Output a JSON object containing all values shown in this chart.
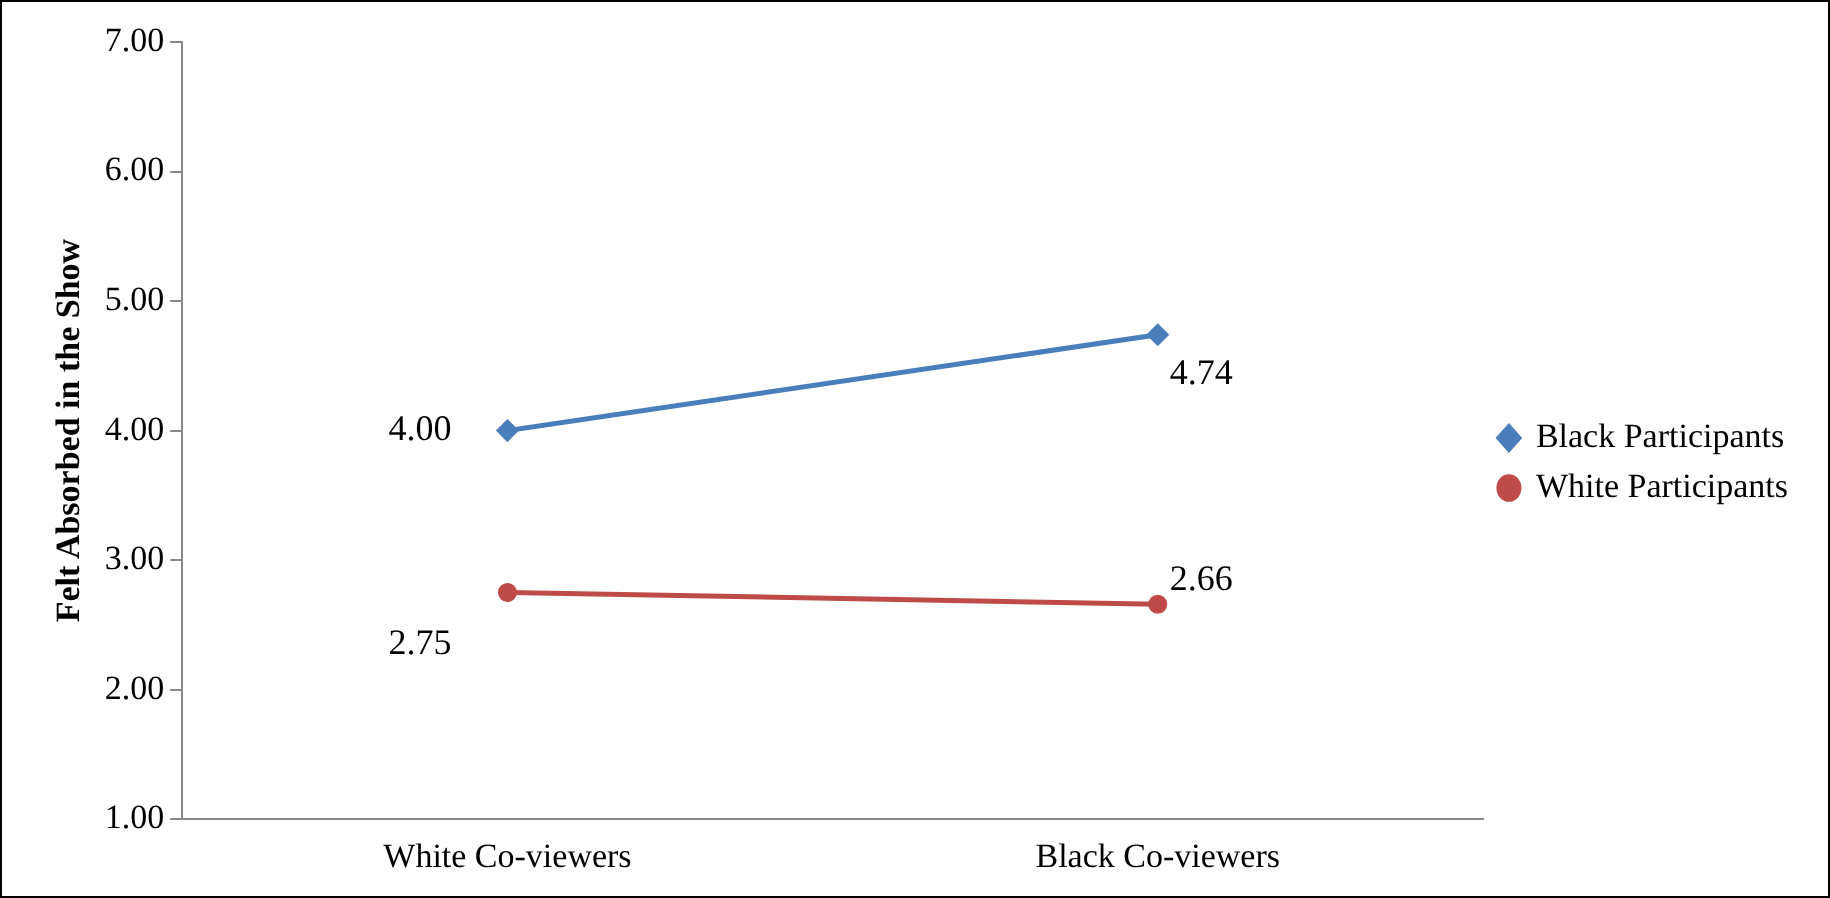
{
  "chart_data": {
    "type": "line",
    "ylabel": "Felt Absorbed in the Show",
    "categories": [
      "White Co-viewers",
      "Black Co-viewers"
    ],
    "series": [
      {
        "name": "Black Participants",
        "color": "#4a7ebb",
        "marker": "diamond",
        "values": [
          4.0,
          4.74
        ],
        "value_labels": [
          "4.00",
          "4.74"
        ]
      },
      {
        "name": "White Participants",
        "color": "#be4b48",
        "marker": "circle",
        "values": [
          2.75,
          2.66
        ],
        "value_labels": [
          "2.75",
          "2.66"
        ]
      }
    ],
    "ylim": [
      1,
      7
    ],
    "yticks": [
      {
        "value": 1,
        "label": "1.00"
      },
      {
        "value": 2,
        "label": "2.00"
      },
      {
        "value": 3,
        "label": "3.00"
      },
      {
        "value": 4,
        "label": "4.00"
      },
      {
        "value": 5,
        "label": "5.00"
      },
      {
        "value": 6,
        "label": "6.00"
      },
      {
        "value": 7,
        "label": "7.00"
      }
    ],
    "grid": false,
    "legend": "right",
    "line_style": "solid"
  }
}
